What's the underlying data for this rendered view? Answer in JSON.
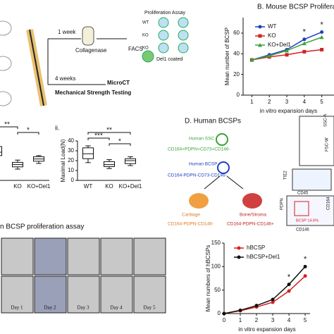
{
  "schematic": {
    "step1": "1 week",
    "enzyme": "Collagenase",
    "sort": "FACS",
    "assay": "Proliferation Assay",
    "groups": [
      "WT",
      "KO",
      "KO"
    ],
    "coating": "Del1 coated",
    "step2": "4 weeks",
    "tests": [
      "MicroCT",
      "Mechanical Strength Testing"
    ]
  },
  "human_bcsps": {
    "title": "D. Human BCSPs",
    "ssc": "Human SSC",
    "ssc_markers": "CD164+PDPN+CD73+CD146-",
    "bcsp": "Human BCSP",
    "bcsp_markers": "CD164-PDPN-CD73-CD146-",
    "cartilage": "Cartilage",
    "cartilage_markers": "CD164-PDPN-CD146-",
    "bone": "Bone/Stroma",
    "bone_markers": "CD164-PDPN-CD146+",
    "flow": {
      "axes": [
        "SSC-A",
        "FSC-W",
        "TIE2",
        "CD45",
        "CD164",
        "PDPN",
        "CD146"
      ],
      "gate": "BCSP 14.6%"
    }
  },
  "microscopy": {
    "title": "n BCSP proliferation assay",
    "days": [
      "Day 1",
      "Day 2",
      "Day 3",
      "Day 4",
      "Day 5"
    ]
  },
  "chart_data": [
    {
      "type": "line",
      "title": "B. Mouse BCSP Proliferation",
      "ylabel": "Mean number of BCSP",
      "xlabel": "in vitro expansion days",
      "x": [
        1,
        2,
        3,
        4,
        5
      ],
      "xlim": [
        0.5,
        5.7
      ],
      "xticks": [
        1,
        2,
        3,
        4,
        5
      ],
      "ylim": [
        0,
        75
      ],
      "yticks": [
        0,
        20,
        40,
        60
      ],
      "series": [
        {
          "name": "WT",
          "color": "#1f3fbf",
          "marker": "circle",
          "values": [
            34,
            39,
            44,
            54,
            61
          ]
        },
        {
          "name": "KO",
          "color": "#d62020",
          "marker": "square",
          "values": [
            34,
            37,
            39,
            42,
            44
          ]
        },
        {
          "name": "KO+Del1",
          "color": "#3aa33a",
          "marker": "triangle",
          "values": [
            34,
            38,
            43,
            50,
            56
          ]
        }
      ],
      "annotations": [
        {
          "text": "*",
          "x": 4
        },
        {
          "text": "*",
          "x": 5
        }
      ]
    },
    {
      "type": "box",
      "categories": [
        null,
        "KO",
        "KO+Del1"
      ],
      "ylim": [
        0,
        40
      ],
      "boxes": [
        {
          "min": 20,
          "q1": 22,
          "median": 25,
          "q3": 30,
          "max": 32
        },
        {
          "min": 10,
          "q1": 12,
          "median": 14,
          "q3": 16,
          "max": 18
        },
        {
          "min": 15,
          "q1": 17,
          "median": 19,
          "q3": 21,
          "max": 22
        }
      ],
      "brackets": [
        {
          "text": "**",
          "between": [
            0,
            1
          ]
        },
        {
          "text": "*",
          "between": [
            1,
            2
          ]
        }
      ]
    },
    {
      "type": "box",
      "label": "ii.",
      "ylabel": "Maximal Load(N)",
      "categories": [
        "WT",
        "KO",
        "KO+Del1"
      ],
      "ylim": [
        0,
        40
      ],
      "yticks": [
        0,
        10,
        20,
        30,
        40
      ],
      "boxes": [
        {
          "min": 18,
          "q1": 22,
          "median": 27,
          "q3": 33,
          "max": 35
        },
        {
          "min": 12,
          "q1": 14,
          "median": 16,
          "q3": 19,
          "max": 21
        },
        {
          "min": 15,
          "q1": 17,
          "median": 20,
          "q3": 22,
          "max": 24
        }
      ],
      "brackets": [
        {
          "text": "**",
          "between": [
            0,
            2
          ]
        },
        {
          "text": "***",
          "between": [
            0,
            1
          ]
        },
        {
          "text": "*",
          "between": [
            1,
            2
          ]
        }
      ]
    },
    {
      "type": "line",
      "ylabel": "Mean numbers of hBCSPs",
      "xlabel": "in vitro expansion days",
      "x": [
        0,
        1,
        2,
        3,
        4,
        5
      ],
      "xlim": [
        0,
        5.3
      ],
      "xticks": [
        0,
        1,
        2,
        3,
        4,
        5
      ],
      "ylim": [
        0,
        150
      ],
      "yticks": [
        0,
        50,
        100,
        150
      ],
      "series": [
        {
          "name": "hBCSP",
          "color": "#d62020",
          "marker": "circle",
          "values": [
            0,
            6,
            14,
            24,
            48,
            80
          ]
        },
        {
          "name": "hBCSP+Del1",
          "color": "#111111",
          "marker": "circle",
          "values": [
            0,
            7,
            17,
            30,
            62,
            100
          ]
        }
      ],
      "annotations": [
        {
          "text": "*",
          "x": 4
        },
        {
          "text": "*",
          "x": 5
        }
      ]
    }
  ]
}
